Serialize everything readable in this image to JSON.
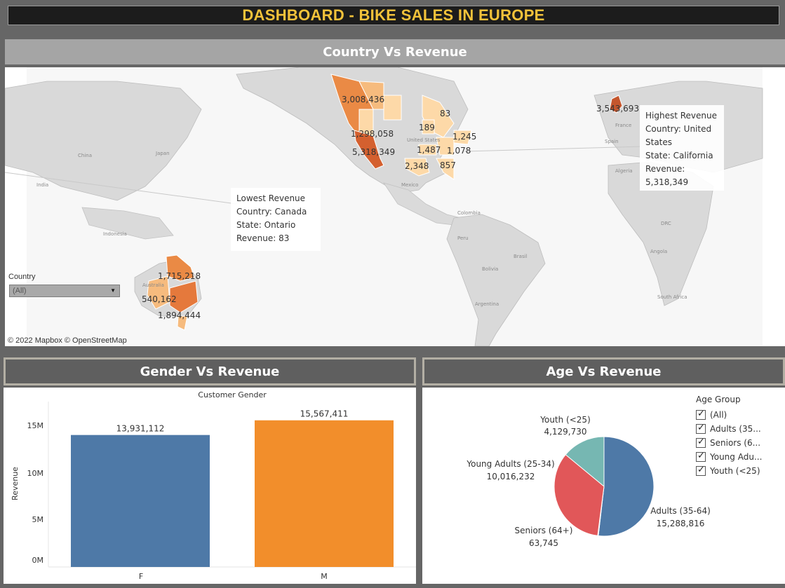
{
  "dashboard_title": "DASHBOARD - BIKE SALES IN EUROPE",
  "map_section": {
    "header": "Country Vs Revenue",
    "region_labels": [
      {
        "id": "lbl-wa",
        "text": "3,008,436"
      },
      {
        "id": "lbl-on",
        "text": "83"
      },
      {
        "id": "lbl-or",
        "text": "1,298,058"
      },
      {
        "id": "lbl-bc",
        "text": "189"
      },
      {
        "id": "lbl-qc",
        "text": "1,245"
      },
      {
        "id": "lbl-ca",
        "text": "5,318,349"
      },
      {
        "id": "lbl-mo",
        "text": "1,487"
      },
      {
        "id": "lbl-ny",
        "text": "1,078"
      },
      {
        "id": "lbl-tx",
        "text": "2,348"
      },
      {
        "id": "lbl-fl",
        "text": "857"
      },
      {
        "id": "lbl-uk",
        "text": "3,543,693"
      },
      {
        "id": "lbl-qld",
        "text": "1,715,218"
      },
      {
        "id": "lbl-wa-au",
        "text": "540,162"
      },
      {
        "id": "lbl-nsw",
        "text": "1,894,444"
      }
    ],
    "place_labels": {
      "united_states": "United States",
      "mexico": "Mexico",
      "colombia": "Colombia",
      "peru": "Peru",
      "brasil": "Brasil",
      "argentina": "Argentina",
      "bolivia": "Bolivia",
      "china": "China",
      "japan": "Japan",
      "india": "India",
      "indonesia": "Indonesia",
      "australia": "Australia",
      "spain": "Spain",
      "france": "France",
      "algeria": "Algeria",
      "south_africa": "South Africa",
      "angola": "Angola",
      "congo": "DRC"
    },
    "tooltip_high": {
      "title": "Highest Revenue",
      "country_line_1": "Country: United",
      "country_line_2": "States",
      "state": "State: California",
      "revenue_label": "Revenue:",
      "revenue_value": "5,318,349"
    },
    "tooltip_low": {
      "title": "Lowest Revenue",
      "country": "Country: Canada",
      "state": "State: Ontario",
      "revenue": "Revenue: 83"
    },
    "filter": {
      "label": "Country",
      "value": "(All)"
    },
    "credit": "© 2022 Mapbox  © OpenStreetMap"
  },
  "gender_section": {
    "header": "Gender Vs Revenue"
  },
  "age_section": {
    "header": "Age Vs Revenue",
    "legend": {
      "title": "Age Group",
      "items": [
        "(All)",
        "Adults (35...",
        "Seniors (6...",
        "Young Adu...",
        "Youth (<25)"
      ]
    }
  },
  "colors": {
    "male": "#f28e2b",
    "female": "#4e79a7",
    "adults": "#4e79a7",
    "young_adults": "#e15759",
    "youth": "#76b7b2",
    "seniors": "#f28e2b",
    "title_text": "#f2c23a"
  },
  "chart_data": [
    {
      "type": "bar",
      "title": "Customer Gender",
      "categories": [
        "F",
        "M"
      ],
      "values": [
        13931112,
        15567411
      ],
      "value_labels": [
        "13,931,112",
        "15,567,411"
      ],
      "ylabel": "Revenue",
      "yticks": [
        "0M",
        "5M",
        "10M",
        "15M"
      ],
      "ylim": [
        0,
        16300000
      ],
      "grid": false
    },
    {
      "type": "pie",
      "categories": [
        "Adults (35-64)",
        "Seniors (64+)",
        "Young Adults (25-34)",
        "Youth (<25)"
      ],
      "values": [
        15288816,
        63745,
        10016232,
        4129730
      ],
      "value_labels": [
        "15,288,816",
        "63,745",
        "10,016,232",
        "4,129,730"
      ],
      "legend_position": "right"
    }
  ]
}
